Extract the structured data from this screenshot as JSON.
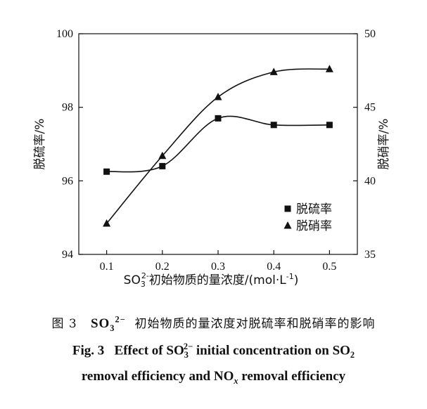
{
  "chart_data": {
    "type": "line",
    "x": [
      0.1,
      0.2,
      0.3,
      0.4,
      0.5
    ],
    "xticks": [
      "0.1",
      "0.2",
      "0.3",
      "0.4",
      "0.5"
    ],
    "xlim": [
      0.05,
      0.55
    ],
    "xlabel_pre": "SO",
    "xlabel_sub": "3",
    "xlabel_sup": "2-",
    "xlabel_post": "初始物质的量浓度/(mol·L",
    "xlabel_unit_sup": "-1",
    "xlabel_end": ")",
    "ylabel_left": "脱硫率/%",
    "ylabel_right": "脱硝率/%",
    "ylim_left": [
      94,
      100
    ],
    "ylim_right": [
      35,
      50
    ],
    "yticks_left": [
      "94",
      "96",
      "98",
      "100"
    ],
    "yticks_right": [
      "35",
      "40",
      "45",
      "50"
    ],
    "grid": false,
    "legend_position": "bottom-right",
    "series": [
      {
        "name": "脱硫率",
        "axis": "left",
        "marker": "square",
        "values": [
          96.25,
          96.4,
          97.7,
          97.52,
          97.52
        ]
      },
      {
        "name": "脱硝率",
        "axis": "right",
        "marker": "triangle",
        "values": [
          37.1,
          41.7,
          45.7,
          47.4,
          47.6
        ]
      }
    ]
  },
  "caption": {
    "cn_label": "图 3",
    "cn_so": "SO",
    "cn_sub": "3",
    "cn_sup": "2−",
    "cn_text": "初始物质的量浓度对脱硫率和脱硝率的影响",
    "en_label": "Fig. 3",
    "en_pre": "Effect of SO",
    "en_sub": "3",
    "en_sup": "2−",
    "en_mid": " initial concentration on SO",
    "en_sub2": "2",
    "en_line2_pre": "removal efficiency and NO",
    "en_sub_x": "x",
    "en_line2_post": " removal efficiency"
  }
}
